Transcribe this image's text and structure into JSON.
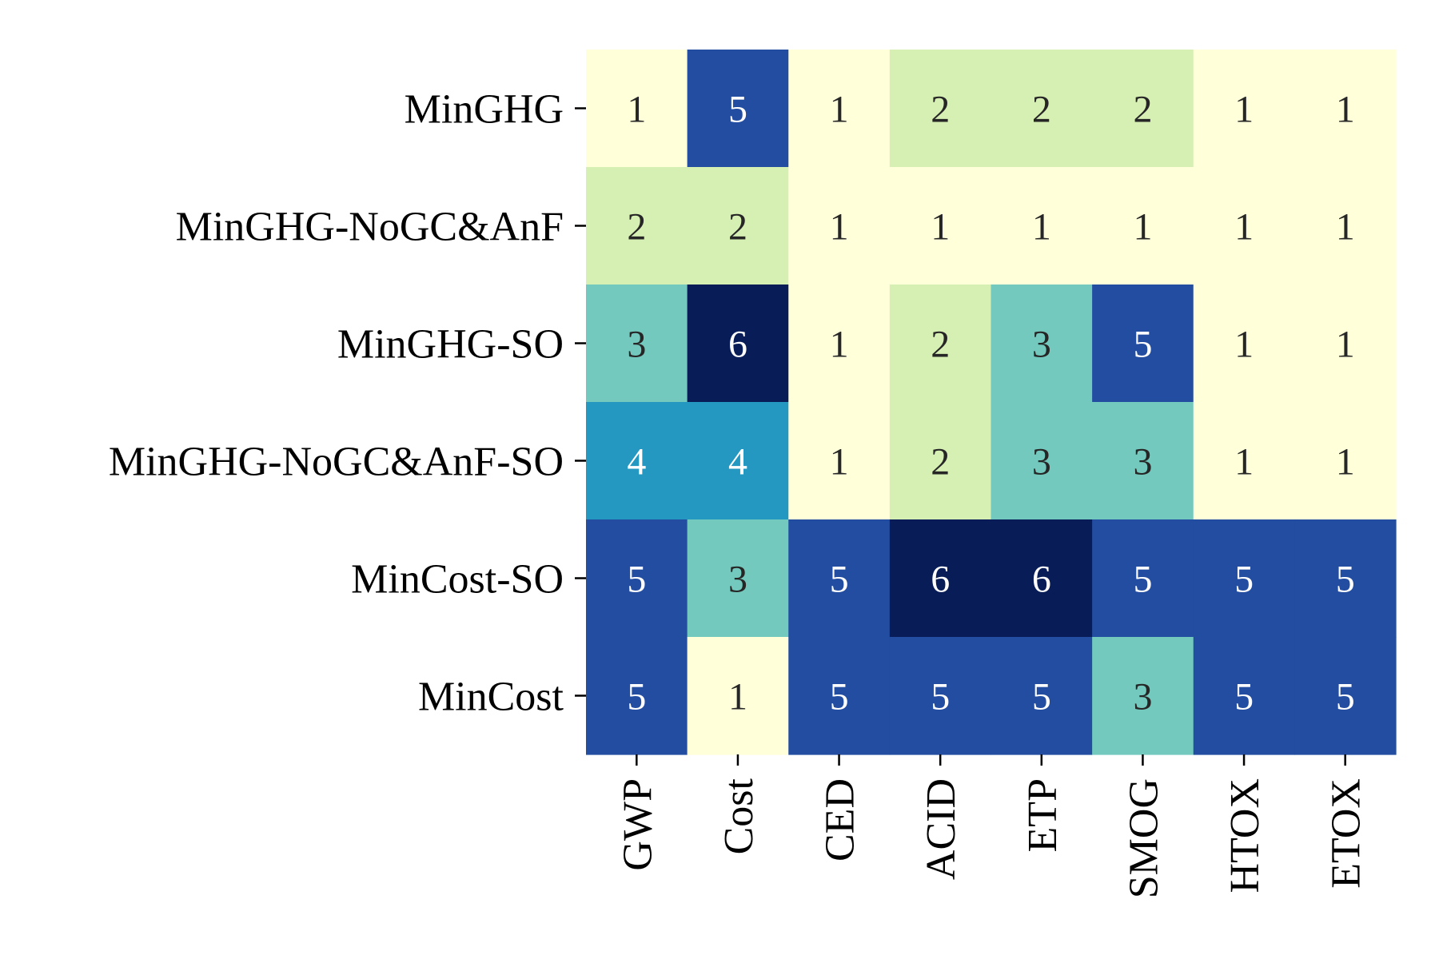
{
  "chart_data": {
    "type": "heatmap",
    "rows": [
      "MinGHG",
      "MinGHG-NoGC&AnF",
      "MinGHG-SO",
      "MinGHG-NoGC&AnF-SO",
      "MinCost-SO",
      "MinCost"
    ],
    "columns": [
      "GWP",
      "Cost",
      "CED",
      "ACID",
      "ETP",
      "SMOG",
      "HTOX",
      "ETOX"
    ],
    "values": [
      [
        1,
        5,
        1,
        2,
        2,
        2,
        1,
        1
      ],
      [
        2,
        2,
        1,
        1,
        1,
        1,
        1,
        1
      ],
      [
        3,
        6,
        1,
        2,
        3,
        5,
        1,
        1
      ],
      [
        4,
        4,
        1,
        2,
        3,
        3,
        1,
        1
      ],
      [
        5,
        3,
        5,
        6,
        6,
        5,
        5,
        5
      ],
      [
        5,
        1,
        5,
        5,
        5,
        3,
        5,
        5
      ]
    ],
    "colormap": "YlGnBu",
    "color_scale": {
      "1": "#ffffd9",
      "2": "#d6efb3",
      "3": "#73c9bd",
      "4": "#2498c1",
      "5": "#234da0",
      "6": "#081d58"
    },
    "annotation_colors": {
      "dark_text": "#262626",
      "light_text": "#ffffff"
    },
    "colorbar": false,
    "grid": false
  }
}
